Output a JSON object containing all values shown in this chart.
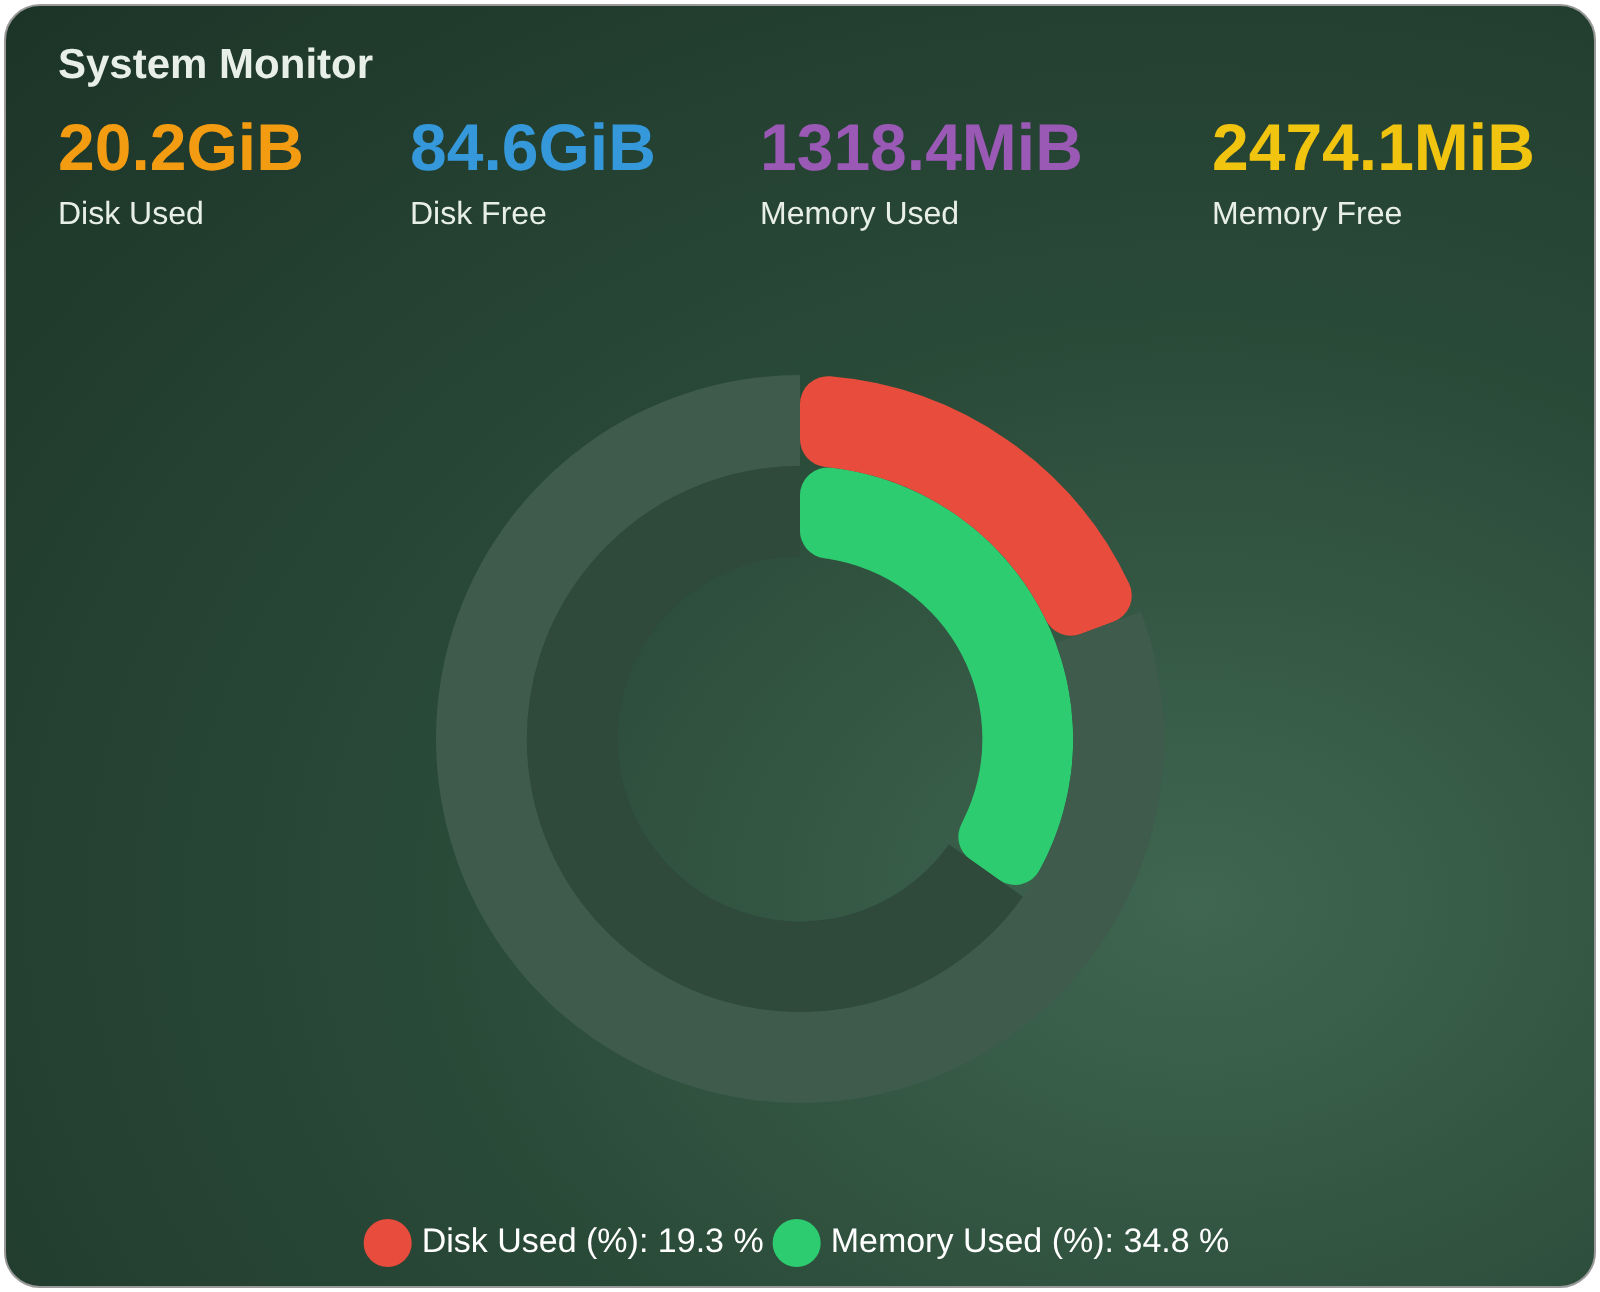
{
  "chart_data": [
    {
      "type": "other",
      "title": "System Monitor",
      "categories": [
        "Disk Used",
        "Disk Free",
        "Memory Used",
        "Memory Free"
      ],
      "value_labels": [
        "20.2GiB",
        "84.6GiB",
        "1318.4MiB",
        "2474.1MiB"
      ],
      "colors": [
        "#f39c12",
        "#3498db",
        "#9b59b6",
        "#f1c40f"
      ]
    },
    {
      "type": "donut",
      "categories": [
        null,
        null
      ],
      "series": [
        {
          "name": "Disk Used (%): 19.3 %",
          "colors": [
            "#e74c3c",
            "#3e5b4b"
          ],
          "values": [
            19.3,
            80.7
          ]
        },
        {
          "name": "Memory Used (%): 34.8 %",
          "colors": [
            "#2ecc71",
            "#2f4a3b"
          ],
          "values": [
            34.8,
            65.2
          ]
        }
      ],
      "legend": "bottom"
    }
  ]
}
